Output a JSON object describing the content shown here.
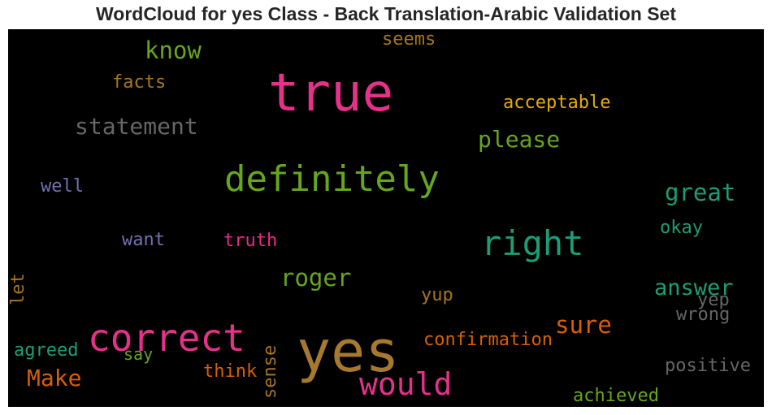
{
  "title": "WordCloud for yes Class - Back Translation-Arabic Validation Set",
  "words": {
    "true": "true",
    "yes": "yes",
    "correct": "correct",
    "definitely": "definitely",
    "right": "right",
    "would": "would",
    "statement": "statement",
    "know": "know",
    "please": "please",
    "great": "great",
    "answer": "answer",
    "roger": "roger",
    "acceptable": "acceptable",
    "confirmation": "confirmation",
    "sure": "sure",
    "make": "Make",
    "truth": "truth",
    "facts": "facts",
    "seems": "seems",
    "want": "want",
    "well": "well",
    "okay": "okay",
    "yep": "yep",
    "wrong": "wrong",
    "yup": "yup",
    "agreed": "agreed",
    "say": "say",
    "think": "think",
    "sense": "sense",
    "positive": "positive",
    "achieved": "achieved",
    "let": "let"
  }
}
